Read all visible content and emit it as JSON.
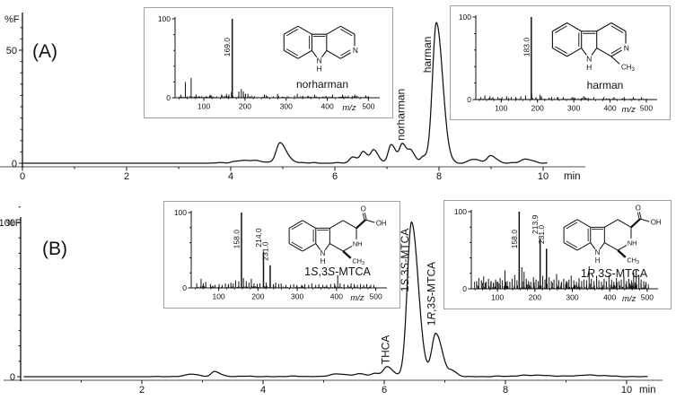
{
  "figure": {
    "background": "#ffffff",
    "line_color": "#111111",
    "axis_gray": "#8a8a8a"
  },
  "chart_data": [
    {
      "id": "chromatogram-a",
      "type": "line",
      "panel_label": "(A)",
      "ylabel": "%F",
      "xlabel": "min",
      "xlim": [
        0,
        10.08
      ],
      "ylim": [
        0,
        64
      ],
      "xticks": [
        0,
        2,
        4,
        6,
        8,
        10
      ],
      "yticks": [
        {
          "label": "50",
          "v": 50
        },
        {
          "label": "0",
          "v": 0
        }
      ],
      "peaks": [
        {
          "t": 4.25,
          "h": 1.2,
          "w": 0.18
        },
        {
          "t": 4.95,
          "h": 9.0,
          "w": 0.075
        },
        {
          "t": 6.35,
          "h": 2.5,
          "w": 0.06
        },
        {
          "t": 6.55,
          "h": 5.0,
          "w": 0.055
        },
        {
          "t": 6.75,
          "h": 5.5,
          "w": 0.055
        },
        {
          "t": 7.08,
          "h": 8.0,
          "w": 0.055
        },
        {
          "t": 7.3,
          "h": 8.5,
          "w": 0.055
        },
        {
          "t": 7.47,
          "h": 4.5,
          "w": 0.05
        },
        {
          "t": 7.7,
          "h": 3.0,
          "w": 0.05
        },
        {
          "t": 7.95,
          "h": 62,
          "w": 0.075
        },
        {
          "t": 8.65,
          "h": 1.5,
          "w": 0.09
        },
        {
          "t": 9.0,
          "h": 3.0,
          "w": 0.07
        },
        {
          "t": 9.65,
          "h": 1.5,
          "w": 0.09
        }
      ],
      "wiggle": {
        "start": 3.85,
        "amp": 0.28
      },
      "annotations": [
        {
          "parts": [
            {
              "t": "norharman"
            }
          ],
          "t": 7.27,
          "y": 10
        },
        {
          "parts": [
            {
              "t": "harman"
            }
          ],
          "t": 7.78,
          "y": 40
        }
      ]
    },
    {
      "id": "chromatogram-b",
      "type": "line",
      "panel_label": "(B)",
      "ylabel": "%F",
      "xlabel": "min",
      "xlim": [
        0.05,
        10.35
      ],
      "ylim": [
        0,
        110
      ],
      "xticks": [
        2,
        4,
        6,
        8,
        10
      ],
      "yticks": [
        {
          "label": "100",
          "v": 100
        },
        {
          "label": "0",
          "v": 0
        }
      ],
      "peaks": [
        {
          "t": 2.8,
          "h": 1.5,
          "w": 0.07
        },
        {
          "t": 3.2,
          "h": 3.5,
          "w": 0.055
        },
        {
          "t": 5.2,
          "h": 1.5,
          "w": 0.12
        },
        {
          "t": 5.6,
          "h": 1.5,
          "w": 0.08
        },
        {
          "t": 5.85,
          "h": 2.0,
          "w": 0.06
        },
        {
          "t": 6.05,
          "h": 6.0,
          "w": 0.06
        },
        {
          "t": 6.45,
          "h": 100,
          "w": 0.07
        },
        {
          "t": 6.85,
          "h": 28,
          "w": 0.065
        },
        {
          "t": 7.12,
          "h": 3.0,
          "w": 0.05
        },
        {
          "t": 8.4,
          "h": 1.0,
          "w": 0.15
        },
        {
          "t": 9.3,
          "h": 1.0,
          "w": 0.15
        }
      ],
      "wiggle": {
        "start": 2.35,
        "amp": 0.3
      },
      "annotations": [
        {
          "parts": [
            {
              "t": "THCA"
            }
          ],
          "t": 6.02,
          "y": 8
        },
        {
          "parts": [
            {
              "t": "1"
            },
            {
              "t": "S",
              "i": 1
            },
            {
              "t": ",3"
            },
            {
              "t": "S",
              "i": 1
            },
            {
              "t": "-MTCA"
            }
          ],
          "t": 6.34,
          "y": 55
        },
        {
          "parts": [
            {
              "t": "1"
            },
            {
              "t": "R",
              "i": 1
            },
            {
              "t": ",3"
            },
            {
              "t": "S",
              "i": 1
            },
            {
              "t": "-MTCA"
            }
          ],
          "t": 6.78,
          "y": 33
        }
      ]
    },
    {
      "id": "ms-norharman",
      "type": "bar",
      "xlabel": "m/z",
      "xlim": [
        30,
        510
      ],
      "ylim": [
        0,
        100
      ],
      "xticks": [
        100,
        200,
        300,
        400,
        500
      ],
      "yticks": [
        {
          "label": "100",
          "v": 100
        },
        {
          "label": "0",
          "v": 0
        }
      ],
      "labeled_peaks": [
        {
          "mz": 169,
          "i": 100,
          "label": "169.0"
        }
      ],
      "peaks": [
        [
          44,
          4
        ],
        [
          55,
          20
        ],
        [
          69,
          25
        ],
        [
          81,
          4
        ],
        [
          115,
          4
        ],
        [
          143,
          4
        ],
        [
          155,
          5
        ],
        [
          161,
          4
        ],
        [
          167,
          7
        ],
        [
          185,
          8
        ],
        [
          191,
          11
        ],
        [
          196,
          8
        ],
        [
          201,
          5
        ],
        [
          207,
          5
        ],
        [
          247,
          4
        ],
        [
          279,
          5
        ],
        [
          327,
          5
        ],
        [
          369,
          4
        ],
        [
          413,
          4
        ],
        [
          437,
          4
        ],
        [
          467,
          4
        ]
      ],
      "noise": {
        "seed": 3,
        "count": 190,
        "max": 3
      },
      "compound": {
        "structure": "aromatic",
        "name_parts": [
          {
            "t": "norharman"
          }
        ],
        "atom_labels": {
          "pyridine_n": "N",
          "indole_n": "N",
          "indole_h": "H"
        }
      }
    },
    {
      "id": "ms-harman",
      "type": "bar",
      "xlabel": "m/z",
      "xlim": [
        30,
        510
      ],
      "ylim": [
        0,
        100
      ],
      "xticks": [
        100,
        200,
        300,
        400,
        500
      ],
      "yticks": [
        {
          "label": "100",
          "v": 100
        },
        {
          "label": "0",
          "v": 0
        }
      ],
      "labeled_peaks": [
        {
          "mz": 183,
          "i": 100,
          "label": "183.0"
        }
      ],
      "peaks": [
        [
          44,
          3
        ],
        [
          55,
          5
        ],
        [
          69,
          4
        ],
        [
          77,
          3
        ],
        [
          91,
          3
        ],
        [
          102,
          3
        ],
        [
          115,
          4
        ],
        [
          128,
          3
        ],
        [
          140,
          3
        ],
        [
          154,
          4
        ],
        [
          167,
          5
        ],
        [
          184,
          7
        ],
        [
          196,
          3
        ],
        [
          207,
          6
        ],
        [
          211,
          4
        ],
        [
          239,
          3
        ],
        [
          255,
          3
        ],
        [
          271,
          3
        ],
        [
          295,
          3
        ],
        [
          327,
          4
        ],
        [
          331,
          3
        ],
        [
          355,
          3
        ],
        [
          383,
          3
        ],
        [
          411,
          3
        ],
        [
          439,
          3
        ],
        [
          464,
          3
        ],
        [
          487,
          3
        ]
      ],
      "noise": {
        "seed": 11,
        "count": 130,
        "max": 2.5
      },
      "compound": {
        "structure": "aromatic",
        "name_parts": [
          {
            "t": "harman"
          }
        ],
        "methyl": true,
        "atom_labels": {
          "pyridine_n": "N",
          "indole_n": "N",
          "indole_h": "H",
          "methyl_main": "CH",
          "methyl_sub": "3"
        }
      }
    },
    {
      "id": "ms-1s3s-mtca",
      "type": "bar",
      "xlabel": "m/z",
      "xlim": [
        30,
        510
      ],
      "ylim": [
        0,
        100
      ],
      "xticks": [
        100,
        200,
        300,
        400,
        500
      ],
      "yticks": [
        {
          "label": "100",
          "v": 100
        },
        {
          "label": "0",
          "v": 0
        }
      ],
      "labeled_peaks": [
        {
          "mz": 158,
          "i": 100,
          "label": "158.0"
        },
        {
          "mz": 214,
          "i": 48,
          "label": "214.0"
        },
        {
          "mz": 231,
          "i": 30,
          "label": "231.0"
        }
      ],
      "peaks": [
        [
          44,
          6
        ],
        [
          55,
          12
        ],
        [
          61,
          6
        ],
        [
          67,
          8
        ],
        [
          79,
          5
        ],
        [
          91,
          4
        ],
        [
          101,
          5
        ],
        [
          109,
          4
        ],
        [
          117,
          6
        ],
        [
          125,
          5
        ],
        [
          131,
          7
        ],
        [
          137,
          6
        ],
        [
          143,
          10
        ],
        [
          151,
          9
        ],
        [
          163,
          13
        ],
        [
          170,
          9
        ],
        [
          177,
          7
        ],
        [
          183,
          12
        ],
        [
          190,
          6
        ],
        [
          198,
          5
        ],
        [
          205,
          6
        ],
        [
          221,
          7
        ],
        [
          239,
          5
        ],
        [
          245,
          7
        ],
        [
          253,
          5
        ],
        [
          259,
          6
        ],
        [
          271,
          4
        ],
        [
          283,
          4
        ],
        [
          291,
          5
        ],
        [
          299,
          4
        ],
        [
          311,
          4
        ],
        [
          319,
          5
        ],
        [
          329,
          4
        ],
        [
          337,
          6
        ],
        [
          347,
          4
        ],
        [
          355,
          5
        ],
        [
          365,
          4
        ],
        [
          375,
          4
        ],
        [
          385,
          5
        ],
        [
          395,
          6
        ],
        [
          403,
          17
        ],
        [
          409,
          6
        ],
        [
          419,
          5
        ],
        [
          429,
          4
        ],
        [
          437,
          6
        ],
        [
          445,
          5
        ],
        [
          453,
          4
        ],
        [
          461,
          5
        ],
        [
          469,
          4
        ],
        [
          477,
          5
        ],
        [
          487,
          4
        ],
        [
          495,
          4
        ]
      ],
      "noise": {
        "seed": 5,
        "count": 160,
        "max": 3
      },
      "compound": {
        "structure": "saturated",
        "name_parts": [
          {
            "t": "1"
          },
          {
            "t": "S",
            "i": 1
          },
          {
            "t": ",3"
          },
          {
            "t": "S",
            "i": 1
          },
          {
            "t": "-MTCA"
          }
        ],
        "atom_labels": {
          "ring_nh": "NH",
          "indole_n": "N",
          "indole_h": "H",
          "methyl_main": "CH",
          "methyl_sub": "3",
          "carbonyl_o": "O",
          "hydroxyl": "OH"
        }
      }
    },
    {
      "id": "ms-1r3s-mtca",
      "type": "bar",
      "xlabel": "m/z",
      "xlim": [
        30,
        510
      ],
      "ylim": [
        0,
        100
      ],
      "xticks": [
        100,
        200,
        300,
        400,
        500
      ],
      "yticks": [
        {
          "label": "100",
          "v": 100
        },
        {
          "label": "0",
          "v": 0
        }
      ],
      "labeled_peaks": [
        {
          "mz": 158,
          "i": 100,
          "label": "158.0"
        },
        {
          "mz": 214,
          "i": 65,
          "label": "213.9"
        },
        {
          "mz": 231,
          "i": 52,
          "label": "231.0"
        }
      ],
      "peaks": [
        [
          44,
          10
        ],
        [
          50,
          14
        ],
        [
          57,
          11
        ],
        [
          63,
          16
        ],
        [
          70,
          9
        ],
        [
          76,
          13
        ],
        [
          83,
          10
        ],
        [
          89,
          8
        ],
        [
          95,
          12
        ],
        [
          101,
          9
        ],
        [
          107,
          14
        ],
        [
          113,
          11
        ],
        [
          120,
          24
        ],
        [
          126,
          10
        ],
        [
          133,
          9
        ],
        [
          139,
          13
        ],
        [
          146,
          18
        ],
        [
          152,
          11
        ],
        [
          165,
          28
        ],
        [
          171,
          22
        ],
        [
          177,
          13
        ],
        [
          183,
          10
        ],
        [
          189,
          9
        ],
        [
          196,
          15
        ],
        [
          203,
          12
        ],
        [
          209,
          10
        ],
        [
          221,
          17
        ],
        [
          227,
          12
        ],
        [
          238,
          15
        ],
        [
          244,
          10
        ],
        [
          251,
          12
        ],
        [
          258,
          19
        ],
        [
          264,
          11
        ],
        [
          271,
          9
        ],
        [
          277,
          13
        ],
        [
          284,
          10
        ],
        [
          291,
          12
        ],
        [
          297,
          17
        ],
        [
          304,
          11
        ],
        [
          311,
          9
        ],
        [
          318,
          14
        ],
        [
          325,
          10
        ],
        [
          331,
          12
        ],
        [
          338,
          11
        ],
        [
          345,
          29
        ],
        [
          351,
          13
        ],
        [
          358,
          10
        ],
        [
          365,
          15
        ],
        [
          371,
          11
        ],
        [
          378,
          9
        ],
        [
          385,
          13
        ],
        [
          391,
          10
        ],
        [
          398,
          18
        ],
        [
          405,
          12
        ],
        [
          411,
          9
        ],
        [
          418,
          14
        ],
        [
          425,
          10
        ],
        [
          431,
          12
        ],
        [
          438,
          16
        ],
        [
          445,
          10
        ],
        [
          451,
          13
        ],
        [
          458,
          11
        ],
        [
          464,
          21
        ],
        [
          471,
          25
        ],
        [
          478,
          18
        ],
        [
          484,
          12
        ],
        [
          491,
          10
        ],
        [
          497,
          9
        ]
      ],
      "noise": {
        "seed": 17,
        "count": 240,
        "max": 10
      },
      "compound": {
        "structure": "saturated",
        "name_parts": [
          {
            "t": "1"
          },
          {
            "t": "R",
            "i": 1
          },
          {
            "t": ",3"
          },
          {
            "t": "S",
            "i": 1
          },
          {
            "t": "-MTCA"
          }
        ],
        "atom_labels": {
          "ring_nh": "NH",
          "indole_n": "N",
          "indole_h": "H",
          "methyl_main": "CH",
          "methyl_sub": "3",
          "carbonyl_o": "O",
          "hydroxyl": "OH"
        }
      }
    }
  ]
}
